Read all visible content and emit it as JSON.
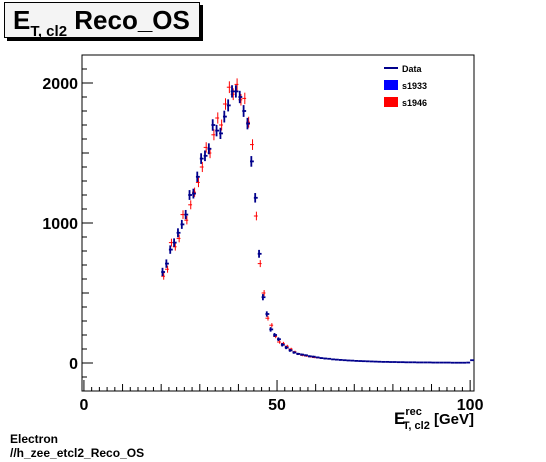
{
  "title": {
    "main": "E",
    "sub": "T, cl2",
    "rest": " Reco_OS"
  },
  "footer": {
    "line1": "Electron",
    "line2": "//h_zee_etcl2_Reco_OS"
  },
  "chart_data": {
    "type": "scatter",
    "title": "E_{T, cl2} Reco_OS",
    "xlabel": {
      "main": "E",
      "sup": "rec",
      "sub": "T, cl2",
      "unit": " [GeV]"
    },
    "ylabel": "",
    "xlim": [
      -0.5,
      101
    ],
    "ylim": [
      -200,
      2200
    ],
    "x_ticks": [
      0,
      50,
      100
    ],
    "y_ticks": [
      0,
      1000,
      2000
    ],
    "grid": false,
    "legend_position": "top-right",
    "colors": {
      "Data": "#00008b",
      "s1933": "#0000ff",
      "s1946": "#ff0000"
    },
    "legend": [
      {
        "label": "Data",
        "style": "line"
      },
      {
        "label": "s1933",
        "style": "box"
      },
      {
        "label": "s1946",
        "style": "box"
      }
    ],
    "series": [
      {
        "name": "Data",
        "x": [
          20.5,
          21.5,
          22.5,
          23.5,
          24.5,
          25.5,
          26.5,
          27.5,
          28.5,
          29.5,
          30.5,
          31.5,
          32.5,
          33.5,
          34.5,
          35.5,
          36.5,
          37.5,
          38.5,
          39.5,
          40.5,
          41.5,
          42.5,
          43.5,
          44.5,
          45.5,
          46.5,
          47.5,
          48.5,
          49.5,
          50.5,
          51.5,
          52.5,
          53.5,
          54.5,
          55.5,
          56.5,
          57.5,
          58.5,
          59.5,
          60.5,
          61.5,
          62.5,
          63.5,
          64.5,
          65.5,
          66.5,
          67.5,
          68.5,
          69.5,
          70.5,
          71.5,
          72.5,
          73.5,
          74.5,
          75.5,
          76.5,
          77.5,
          78.5,
          79.5,
          80.5,
          81.5,
          82.5,
          83.5,
          84.5,
          85.5,
          86.5,
          87.5,
          88.5,
          89.5,
          90.5,
          91.5,
          92.5,
          93.5,
          94.5,
          95.5,
          96.5,
          97.5,
          98.5,
          99.5,
          100.5
        ],
        "y": [
          650,
          710,
          810,
          860,
          930,
          990,
          1060,
          1200,
          1210,
          1330,
          1460,
          1480,
          1530,
          1700,
          1660,
          1640,
          1760,
          1840,
          1940,
          1940,
          1900,
          1800,
          1710,
          1440,
          1180,
          780,
          470,
          350,
          240,
          200,
          170,
          130,
          110,
          90,
          75,
          65,
          60,
          55,
          48,
          45,
          40,
          35,
          32,
          30,
          26,
          24,
          22,
          20,
          18,
          17,
          15,
          14,
          13,
          12,
          11,
          10,
          9,
          8,
          8,
          7,
          7,
          6,
          6,
          5,
          5,
          5,
          4,
          4,
          4,
          4,
          3,
          3,
          3,
          3,
          3,
          2,
          2,
          2,
          2,
          3,
          20
        ],
        "yerr": [
          30,
          30,
          30,
          30,
          32,
          32,
          33,
          35,
          35,
          37,
          38,
          38,
          39,
          41,
          41,
          40,
          42,
          43,
          44,
          44,
          44,
          42,
          41,
          38,
          34,
          28,
          22,
          19,
          16,
          14,
          13,
          12,
          11,
          10,
          9,
          8,
          8,
          7,
          7,
          7,
          6,
          6,
          6,
          5,
          5,
          5,
          5,
          4,
          4,
          4,
          4,
          4,
          4,
          3,
          3,
          3,
          3,
          3,
          3,
          3,
          3,
          2,
          2,
          2,
          2,
          2,
          2,
          2,
          2,
          2,
          2,
          2,
          2,
          2,
          2,
          1,
          1,
          1,
          1,
          2,
          4
        ]
      },
      {
        "name": "s1946",
        "x": [
          20.5,
          21.5,
          22.5,
          23.5,
          24.5,
          25.5,
          26.5,
          27.5,
          28.5,
          29.5,
          30.5,
          31.5,
          32.5,
          33.5,
          34.5,
          35.5,
          36.5,
          37.5,
          38.5,
          39.5,
          40.5,
          41.5,
          42.5,
          43.5,
          44.5,
          45.5,
          46.5,
          47.5,
          48.5,
          49.5,
          50.5,
          51.5,
          52.5,
          53.5,
          54.5,
          55.5,
          56.5,
          57.5,
          58.5,
          59.5,
          60.5
        ],
        "y": [
          620,
          670,
          860,
          830,
          890,
          1060,
          1020,
          1130,
          1220,
          1290,
          1400,
          1540,
          1500,
          1630,
          1750,
          1700,
          1850,
          1970,
          1920,
          1990,
          1880,
          1890,
          1720,
          1560,
          1050,
          710,
          500,
          320,
          270,
          190,
          150,
          140,
          120,
          100,
          80,
          65,
          55,
          50,
          45,
          40,
          38
        ],
        "yerr": [
          25,
          25,
          28,
          27,
          28,
          31,
          30,
          32,
          33,
          34,
          36,
          37,
          37,
          39,
          40,
          39,
          41,
          42,
          42,
          43,
          41,
          41,
          39,
          38,
          31,
          25,
          21,
          17,
          15,
          13,
          12,
          11,
          10,
          9,
          8,
          7,
          7,
          6,
          6,
          6,
          6
        ]
      }
    ]
  }
}
